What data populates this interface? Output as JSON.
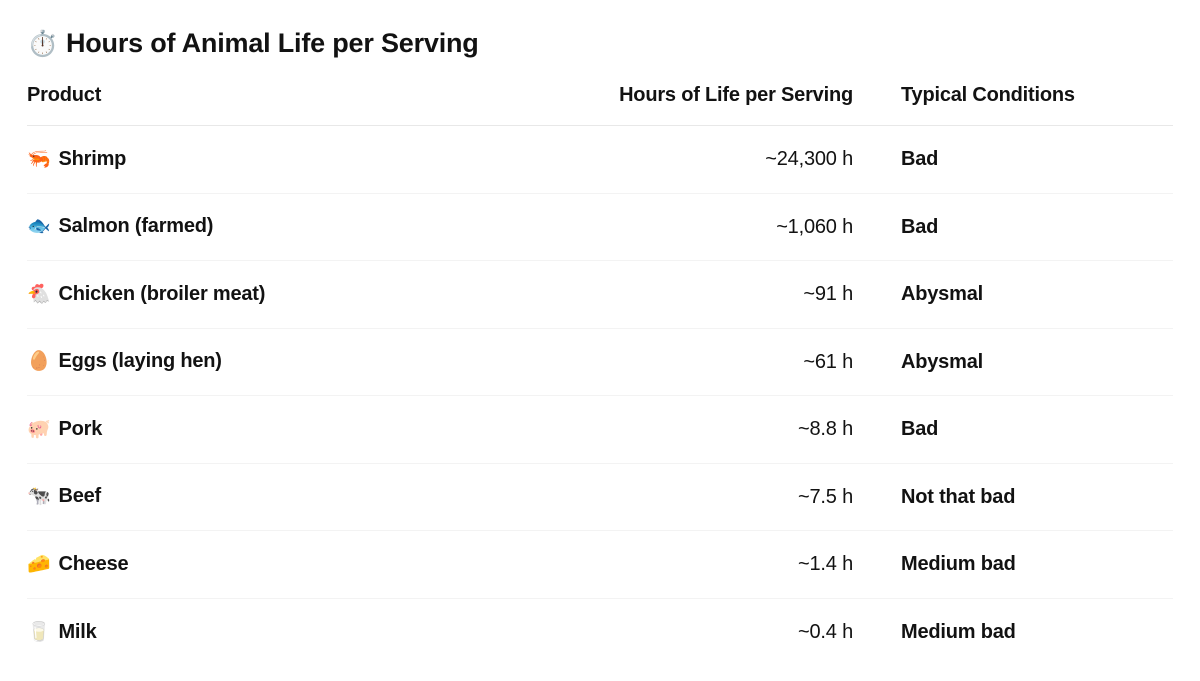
{
  "page": {
    "title_emoji": "⏱️",
    "title": "Hours of Animal Life per Serving"
  },
  "table": {
    "headers": {
      "product": "Product",
      "hours": "Hours of Life per Serving",
      "conditions": "Typical Conditions"
    },
    "rows": [
      {
        "emoji": "🦐",
        "product": "Shrimp",
        "hours": "~24,300 h",
        "conditions": "Bad"
      },
      {
        "emoji": "🐟",
        "product": "Salmon (farmed)",
        "hours": "~1,060 h",
        "conditions": "Bad"
      },
      {
        "emoji": "🐔",
        "product": "Chicken (broiler meat)",
        "hours": "~91 h",
        "conditions": "Abysmal"
      },
      {
        "emoji": "🥚",
        "product": "Eggs (laying hen)",
        "hours": "~61 h",
        "conditions": "Abysmal"
      },
      {
        "emoji": "🐖",
        "product": "Pork",
        "hours": "~8.8 h",
        "conditions": "Bad"
      },
      {
        "emoji": "🐄",
        "product": "Beef",
        "hours": "~7.5 h",
        "conditions": "Not that bad"
      },
      {
        "emoji": "🧀",
        "product": "Cheese",
        "hours": "~1.4 h",
        "conditions": "Medium bad"
      },
      {
        "emoji": "🥛",
        "product": "Milk",
        "hours": "~0.4 h",
        "conditions": "Medium bad"
      }
    ]
  },
  "colors": {
    "background": "#ffffff",
    "text": "#121212",
    "header_divider": "#e8e8e8",
    "row_divider": "#f3f3f3"
  }
}
